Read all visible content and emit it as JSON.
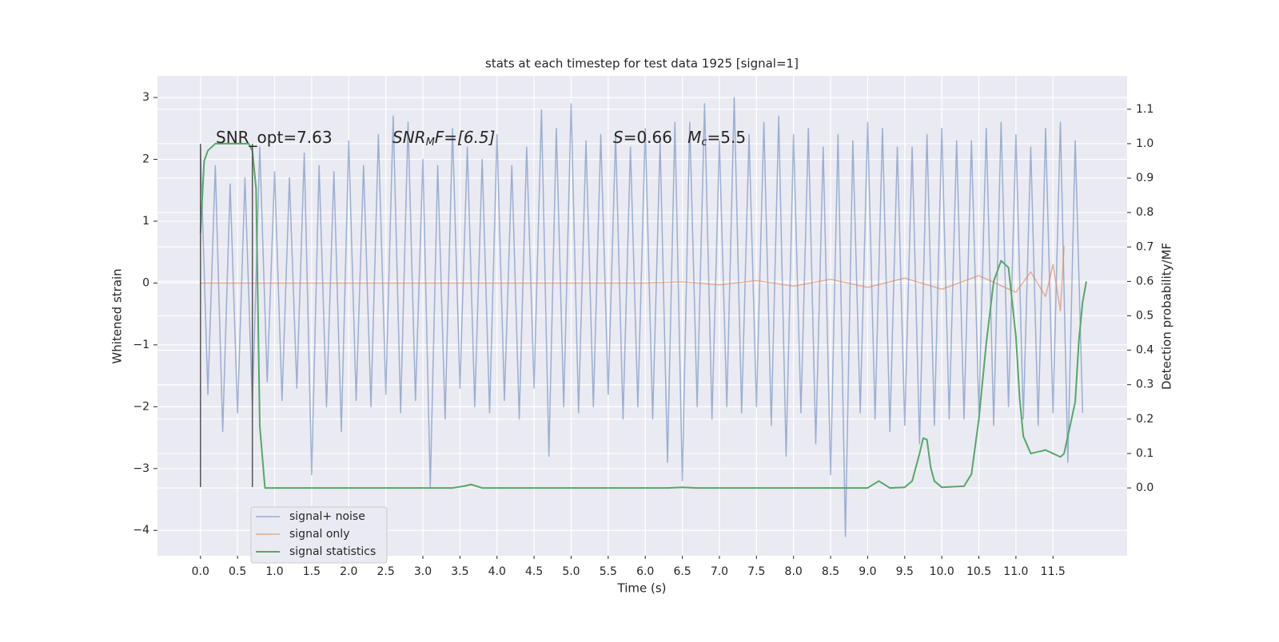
{
  "chart_data": {
    "type": "line",
    "title": "stats at each timestep for test data 1925 [signal=1]",
    "xlabel": "Time (s)",
    "ylabel": "Whitened strain",
    "y2label": "Detection probability/MF",
    "xlim": [
      -0.58,
      12.5
    ],
    "ylim": [
      -4.41,
      3.35
    ],
    "y2lim": [
      -0.197,
      1.197
    ],
    "xticks": [
      {
        "value": 0,
        "label": "0.0"
      },
      0.5,
      {
        "value": 1,
        "label": "1.0"
      },
      1.5,
      {
        "value": 2,
        "label": "2.0"
      },
      2.5,
      {
        "value": 3,
        "label": "3.0"
      },
      3.5,
      {
        "value": 4,
        "label": "4.0"
      },
      4.5,
      {
        "value": 5,
        "label": "5.0"
      },
      5.5,
      {
        "value": 6,
        "label": "6.0"
      },
      6.5,
      {
        "value": 7,
        "label": "7.0"
      },
      7.5,
      {
        "value": 8,
        "label": "8.0"
      },
      8.5,
      {
        "value": 9,
        "label": "9.0"
      },
      9.5,
      {
        "value": 10,
        "label": "10.0"
      },
      10.5,
      {
        "value": 11,
        "label": "11.0"
      },
      11.5
    ],
    "yticks": [
      {
        "value": -4,
        "label": "−4"
      },
      {
        "value": -3,
        "label": "−3"
      },
      {
        "value": -2,
        "label": "−2"
      },
      {
        "value": -1,
        "label": "−1"
      },
      0,
      1,
      2,
      3
    ],
    "y2ticks": [
      {
        "value": 0,
        "label": "0.0"
      },
      0.1,
      0.2,
      0.3,
      0.4,
      0.5,
      0.6,
      0.7,
      0.8,
      0.9,
      {
        "value": 1,
        "label": "1.0"
      },
      1.1
    ],
    "grid": true,
    "legend": "lower left",
    "series": [
      {
        "name": "signal+ noise",
        "color": "#4c72b0",
        "x": [
          0,
          0.1,
          0.2,
          0.3,
          0.4,
          0.5,
          0.6,
          0.7,
          0.8,
          0.9,
          1,
          1.1,
          1.2,
          1.3,
          1.4,
          1.5,
          1.6,
          1.7,
          1.8,
          1.9,
          2,
          2.1,
          2.2,
          2.3,
          2.4,
          2.5,
          2.6,
          2.7,
          2.8,
          2.9,
          3,
          3.1,
          3.2,
          3.3,
          3.4,
          3.5,
          3.6,
          3.7,
          3.8,
          3.9,
          4,
          4.1,
          4.2,
          4.3,
          4.4,
          4.5,
          4.6,
          4.7,
          4.8,
          4.9,
          5,
          5.1,
          5.2,
          5.3,
          5.4,
          5.5,
          5.6,
          5.7,
          5.8,
          5.9,
          6,
          6.1,
          6.2,
          6.3,
          6.4,
          6.5,
          6.6,
          6.7,
          6.8,
          6.9,
          7,
          7.1,
          7.2,
          7.3,
          7.4,
          7.5,
          7.6,
          7.7,
          7.8,
          7.9,
          8,
          8.1,
          8.2,
          8.3,
          8.4,
          8.5,
          8.6,
          8.7,
          8.8,
          8.9,
          9,
          9.1,
          9.2,
          9.3,
          9.4,
          9.5,
          9.6,
          9.7,
          9.8,
          9.9,
          10,
          10.1,
          10.2,
          10.3,
          10.4,
          10.5,
          10.6,
          10.7,
          10.8,
          10.9,
          11,
          11.1,
          11.2,
          11.3,
          11.4,
          11.5,
          11.6,
          11.7,
          11.8,
          11.9
        ],
        "values": [
          2.2,
          -1.8,
          1.9,
          -2.4,
          1.6,
          -2.1,
          1.7,
          -2.0,
          2.2,
          -1.6,
          1.8,
          -1.9,
          1.7,
          -1.7,
          2.1,
          -3.1,
          1.9,
          -2.0,
          1.8,
          -2.4,
          2.3,
          -1.9,
          1.9,
          -2.0,
          2.4,
          -1.8,
          2.7,
          -2.1,
          2.6,
          -1.9,
          2.0,
          -3.3,
          1.9,
          -2.2,
          2.5,
          -1.7,
          2.2,
          -2.0,
          2.0,
          -2.1,
          2.4,
          -1.9,
          1.9,
          -2.2,
          2.2,
          -1.7,
          2.8,
          -2.8,
          2.5,
          -2.0,
          2.9,
          -2.1,
          2.3,
          -2.0,
          2.4,
          -1.8,
          2.4,
          -2.2,
          2.2,
          -2.0,
          2.5,
          -2.2,
          2.3,
          -2.9,
          2.6,
          -3.2,
          2.6,
          -2.0,
          2.9,
          -2.2,
          2.3,
          -2.0,
          3.0,
          -2.1,
          2.4,
          -2.0,
          2.6,
          -2.3,
          2.7,
          -2.8,
          2.4,
          -2.1,
          2.5,
          -2.6,
          2.2,
          -3.1,
          2.4,
          -4.1,
          2.3,
          -2.1,
          2.6,
          -2.2,
          2.5,
          -2.4,
          2.2,
          -2.3,
          2.2,
          -2.6,
          2.4,
          -2.3,
          2.5,
          -2.2,
          2.3,
          -2.2,
          2.3,
          -2.1,
          2.5,
          -2.3,
          2.6,
          -2.0,
          2.4,
          -2.2,
          2.2,
          -2.3,
          2.5,
          -2.1,
          2.6,
          -2.9,
          2.3,
          -2.1
        ]
      },
      {
        "name": "signal only",
        "color": "#dd8452",
        "x": [
          0,
          6.0,
          6.5,
          7.0,
          7.5,
          8.0,
          8.5,
          9.0,
          9.5,
          10.0,
          10.5,
          11.0,
          11.2,
          11.4,
          11.5,
          11.6,
          11.65
        ],
        "values": [
          0,
          0,
          0.02,
          -0.03,
          0.04,
          -0.05,
          0.06,
          -0.07,
          0.08,
          -0.1,
          0.12,
          -0.15,
          0.18,
          -0.22,
          0.3,
          -0.45,
          0.6
        ]
      },
      {
        "name": "signal statistics",
        "color": "#55a868",
        "axis": "y2",
        "x": [
          0,
          0.05,
          0.1,
          0.2,
          0.5,
          0.65,
          0.7,
          0.75,
          0.8,
          0.87,
          0.95,
          3.4,
          3.55,
          3.65,
          3.8,
          6.3,
          6.5,
          6.7,
          8.5,
          9.0,
          9.15,
          9.3,
          9.5,
          9.6,
          9.7,
          9.75,
          9.8,
          9.85,
          9.9,
          10.0,
          10.3,
          10.4,
          10.5,
          10.6,
          10.7,
          10.8,
          10.9,
          11.0,
          11.05,
          11.1,
          11.2,
          11.3,
          11.4,
          11.5,
          11.6,
          11.65,
          11.7,
          11.8,
          11.85,
          11.9,
          11.95
        ],
        "values": [
          0.74,
          0.95,
          0.98,
          1.0,
          1.0,
          1.0,
          0.98,
          0.87,
          0.18,
          0.0,
          0.0,
          0.0,
          0.005,
          0.01,
          0.0,
          0.0,
          0.002,
          0.0,
          0.0,
          0.0,
          0.02,
          0.0,
          0.002,
          0.02,
          0.1,
          0.145,
          0.14,
          0.06,
          0.02,
          0.002,
          0.005,
          0.04,
          0.2,
          0.42,
          0.6,
          0.66,
          0.64,
          0.44,
          0.26,
          0.15,
          0.1,
          0.105,
          0.11,
          0.1,
          0.09,
          0.1,
          0.15,
          0.25,
          0.43,
          0.54,
          0.6
        ]
      }
    ],
    "vlines": {
      "x": [
        0,
        0.7
      ],
      "ymin": -3.3,
      "ymax": 2.25
    },
    "annotations": [
      [
        "SNR_opt=7.63"
      ],
      [
        "SNR",
        "M",
        "F=[6.5]"
      ],
      [
        "S",
        "=0.66   ",
        "M",
        "c",
        "=5.5"
      ]
    ]
  }
}
